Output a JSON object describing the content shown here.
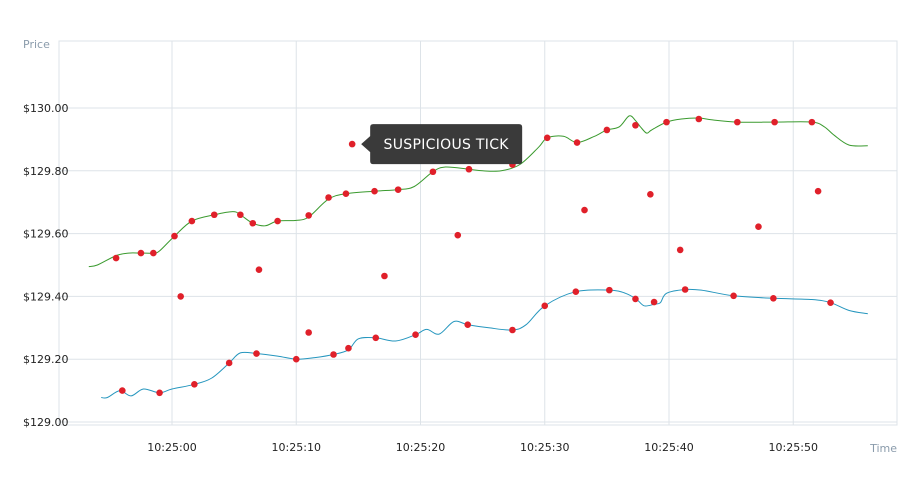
{
  "chart_data": {
    "type": "line",
    "xlabel": "Time",
    "ylabel": "Price",
    "x_ticks": [
      "10:25:00",
      "10:25:10",
      "10:25:20",
      "10:25:30",
      "10:25:40",
      "10:25:50"
    ],
    "y_ticks": [
      "$129.00",
      "$129.20",
      "$129.40",
      "$129.60",
      "$129.80",
      "$130.00"
    ],
    "xlim": [
      -7,
      57
    ],
    "ylim": [
      129.0,
      130.2
    ],
    "grid": true,
    "series": [
      {
        "color": "#3a9a2e",
        "points": [
          [
            -6.7,
            129.495
          ],
          [
            -6.0,
            129.5
          ],
          [
            -4.5,
            129.53
          ],
          [
            -3.5,
            129.538
          ],
          [
            -2.5,
            129.538
          ],
          [
            -1.5,
            129.538
          ],
          [
            -1.0,
            129.545
          ],
          [
            0.2,
            129.592
          ],
          [
            1.6,
            129.64
          ],
          [
            3.4,
            129.66
          ],
          [
            4.9,
            129.67
          ],
          [
            5.5,
            129.66
          ],
          [
            6.5,
            129.633
          ],
          [
            7.5,
            129.625
          ],
          [
            8.5,
            129.64
          ],
          [
            10.0,
            129.642
          ],
          [
            11.0,
            129.653
          ],
          [
            12.6,
            129.71
          ],
          [
            14.0,
            129.727
          ],
          [
            16.3,
            129.735
          ],
          [
            18.2,
            129.74
          ],
          [
            19.5,
            129.75
          ],
          [
            21.0,
            129.797
          ],
          [
            22.0,
            129.812
          ],
          [
            23.9,
            129.805
          ],
          [
            25.0,
            129.8
          ],
          [
            26.5,
            129.8
          ],
          [
            28.0,
            129.82
          ],
          [
            29.5,
            129.875
          ],
          [
            30.2,
            129.905
          ],
          [
            31.5,
            129.91
          ],
          [
            32.6,
            129.89
          ],
          [
            34.0,
            129.91
          ],
          [
            35.0,
            129.93
          ],
          [
            36.0,
            129.94
          ],
          [
            36.8,
            129.975
          ],
          [
            37.3,
            129.96
          ],
          [
            37.7,
            129.94
          ],
          [
            38.2,
            129.92
          ],
          [
            38.6,
            129.93
          ],
          [
            39.8,
            129.955
          ],
          [
            41.0,
            129.965
          ],
          [
            42.4,
            129.968
          ],
          [
            43.5,
            129.962
          ],
          [
            45.5,
            129.955
          ],
          [
            48.5,
            129.955
          ],
          [
            51.5,
            129.955
          ],
          [
            52.5,
            129.94
          ],
          [
            53.3,
            129.913
          ],
          [
            54.5,
            129.882
          ],
          [
            56.0,
            129.88
          ]
        ]
      },
      {
        "color": "#2596be",
        "points": [
          [
            -5.7,
            129.078
          ],
          [
            -5.2,
            129.078
          ],
          [
            -4.2,
            129.1
          ],
          [
            -3.3,
            129.083
          ],
          [
            -2.3,
            129.105
          ],
          [
            -1.0,
            129.093
          ],
          [
            0.0,
            129.105
          ],
          [
            1.8,
            129.12
          ],
          [
            3.2,
            129.14
          ],
          [
            4.6,
            129.188
          ],
          [
            5.5,
            129.22
          ],
          [
            6.8,
            129.218
          ],
          [
            8.5,
            129.21
          ],
          [
            10.0,
            129.2
          ],
          [
            11.5,
            129.205
          ],
          [
            13.0,
            129.215
          ],
          [
            14.2,
            129.23
          ],
          [
            15.0,
            129.265
          ],
          [
            16.4,
            129.268
          ],
          [
            18.0,
            129.258
          ],
          [
            19.6,
            129.278
          ],
          [
            20.5,
            129.295
          ],
          [
            21.5,
            129.28
          ],
          [
            22.7,
            129.32
          ],
          [
            23.8,
            129.31
          ],
          [
            25.5,
            129.3
          ],
          [
            27.4,
            129.293
          ],
          [
            28.5,
            129.31
          ],
          [
            30.0,
            129.37
          ],
          [
            32.5,
            129.415
          ],
          [
            35.2,
            129.42
          ],
          [
            36.5,
            129.41
          ],
          [
            37.4,
            129.39
          ],
          [
            38.0,
            129.37
          ],
          [
            38.8,
            129.375
          ],
          [
            39.3,
            129.38
          ],
          [
            39.8,
            129.41
          ],
          [
            41.3,
            129.422
          ],
          [
            42.6,
            129.42
          ],
          [
            45.2,
            129.402
          ],
          [
            48.4,
            129.394
          ],
          [
            51.5,
            129.39
          ],
          [
            53.0,
            129.38
          ],
          [
            54.5,
            129.355
          ],
          [
            56.0,
            129.345
          ]
        ]
      }
    ],
    "ticks_marked": {
      "color": "#e0202a",
      "points": [
        [
          -4.5,
          129.522
        ],
        [
          -2.5,
          129.538
        ],
        [
          -1.5,
          129.538
        ],
        [
          0.2,
          129.592
        ],
        [
          1.6,
          129.64
        ],
        [
          3.4,
          129.66
        ],
        [
          5.5,
          129.66
        ],
        [
          6.5,
          129.633
        ],
        [
          8.5,
          129.64
        ],
        [
          11.0,
          129.658
        ],
        [
          12.6,
          129.715
        ],
        [
          14.0,
          129.727
        ],
        [
          16.3,
          129.735
        ],
        [
          18.2,
          129.74
        ],
        [
          21.0,
          129.797
        ],
        [
          23.9,
          129.805
        ],
        [
          27.4,
          129.82
        ],
        [
          30.2,
          129.905
        ],
        [
          32.6,
          129.89
        ],
        [
          35.0,
          129.93
        ],
        [
          37.3,
          129.945
        ],
        [
          39.8,
          129.955
        ],
        [
          42.4,
          129.965
        ],
        [
          45.5,
          129.955
        ],
        [
          48.5,
          129.955
        ],
        [
          51.5,
          129.955
        ],
        [
          -4.0,
          129.1
        ],
        [
          -1.0,
          129.093
        ],
        [
          1.8,
          129.12
        ],
        [
          4.6,
          129.188
        ],
        [
          6.8,
          129.218
        ],
        [
          10.0,
          129.2
        ],
        [
          13.0,
          129.215
        ],
        [
          14.2,
          129.235
        ],
        [
          16.4,
          129.268
        ],
        [
          19.6,
          129.278
        ],
        [
          23.8,
          129.31
        ],
        [
          27.4,
          129.293
        ],
        [
          30.0,
          129.37
        ],
        [
          32.5,
          129.415
        ],
        [
          35.2,
          129.42
        ],
        [
          37.3,
          129.392
        ],
        [
          38.8,
          129.382
        ],
        [
          41.3,
          129.422
        ],
        [
          45.2,
          129.402
        ],
        [
          48.4,
          129.394
        ],
        [
          53.0,
          129.38
        ]
      ]
    },
    "outlier_points": [
      [
        0.7,
        129.4
      ],
      [
        7.0,
        129.485
      ],
      [
        11.0,
        129.285
      ],
      [
        14.5,
        129.885
      ],
      [
        17.1,
        129.465
      ],
      [
        23.0,
        129.595
      ],
      [
        33.2,
        129.675
      ],
      [
        38.5,
        129.725
      ],
      [
        40.9,
        129.548
      ],
      [
        47.2,
        129.622
      ],
      [
        52.0,
        129.735
      ]
    ],
    "annotation": {
      "text": "SUSPICIOUS TICK",
      "target": [
        14.5,
        129.885
      ]
    }
  }
}
